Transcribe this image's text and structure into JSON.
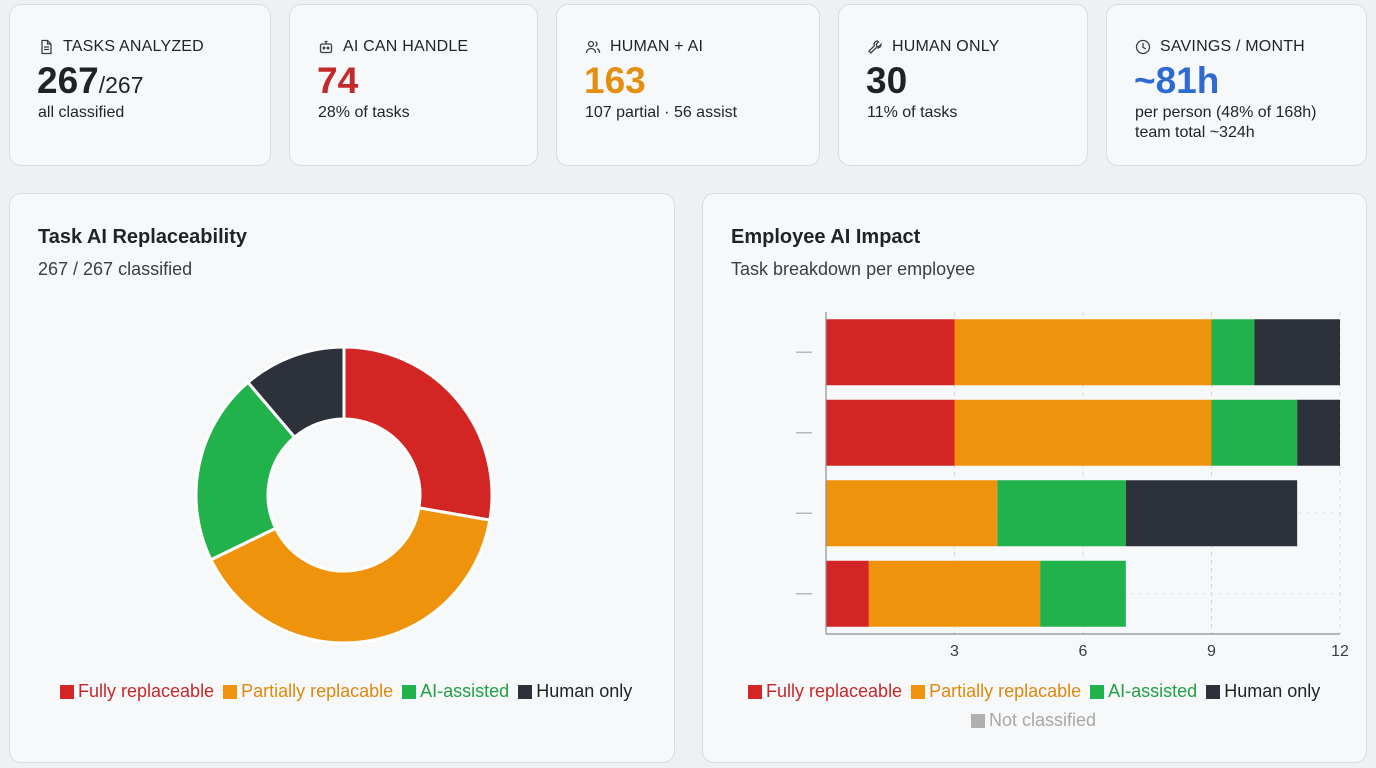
{
  "colors": {
    "fully": "#d42525",
    "partial": "#f0930c",
    "assisted": "#22b24c",
    "human": "#2d3139",
    "not_classified": "#b0b0b0",
    "accent_blue": "#2e6bd1"
  },
  "stats": [
    {
      "icon": "document-icon",
      "label": "TASKS ANALYZED",
      "value": "267",
      "denominator": "/267",
      "sub": "all classified",
      "sub2": ""
    },
    {
      "icon": "robot-icon",
      "label": "AI CAN HANDLE",
      "value": "74",
      "denominator": "",
      "sub": "28% of tasks",
      "sub2": ""
    },
    {
      "icon": "users-icon",
      "label": "HUMAN + AI",
      "value": "163",
      "denominator": "",
      "sub": "107 partial · 56 assist",
      "sub2": ""
    },
    {
      "icon": "wrench-icon",
      "label": "HUMAN ONLY",
      "value": "30",
      "denominator": "",
      "sub": "11% of tasks",
      "sub2": ""
    },
    {
      "icon": "clock-icon",
      "label": "SAVINGS / MONTH",
      "value": "~81h",
      "denominator": "",
      "sub": "per person (48% of 168h)",
      "sub2": "team total ~324h"
    }
  ],
  "donut_panel": {
    "title": "Task AI Replaceability",
    "subtitle": "267 / 267 classified"
  },
  "bar_panel": {
    "title": "Employee AI Impact",
    "subtitle": "Task breakdown per employee"
  },
  "legend": {
    "fully": "Fully replaceable",
    "partial": "Partially replacable",
    "assisted": "AI-assisted",
    "human": "Human only",
    "not_classified": "Not classified"
  },
  "chart_data": [
    {
      "type": "pie",
      "title": "Task AI Replaceability",
      "categories": [
        "Fully replaceable",
        "Partially replacable",
        "AI-assisted",
        "Human only"
      ],
      "values": [
        74,
        107,
        56,
        30
      ],
      "colors": [
        "#d42525",
        "#f0930c",
        "#22b24c",
        "#2d3139"
      ]
    },
    {
      "type": "bar",
      "orientation": "horizontal",
      "stacked": true,
      "title": "Employee AI Impact",
      "categories": [
        "",
        "",
        "",
        ""
      ],
      "xlim": [
        0,
        12
      ],
      "xticks": [
        3,
        6,
        9,
        12
      ],
      "series": [
        {
          "name": "Fully replaceable",
          "values": [
            3,
            3,
            0,
            1
          ]
        },
        {
          "name": "Partially replacable",
          "values": [
            6,
            6,
            4,
            4
          ]
        },
        {
          "name": "AI-assisted",
          "values": [
            1,
            2,
            3,
            2
          ]
        },
        {
          "name": "Human only",
          "values": [
            2,
            1,
            4,
            0
          ]
        },
        {
          "name": "Not classified",
          "values": [
            0,
            0,
            0,
            0
          ]
        }
      ]
    }
  ]
}
